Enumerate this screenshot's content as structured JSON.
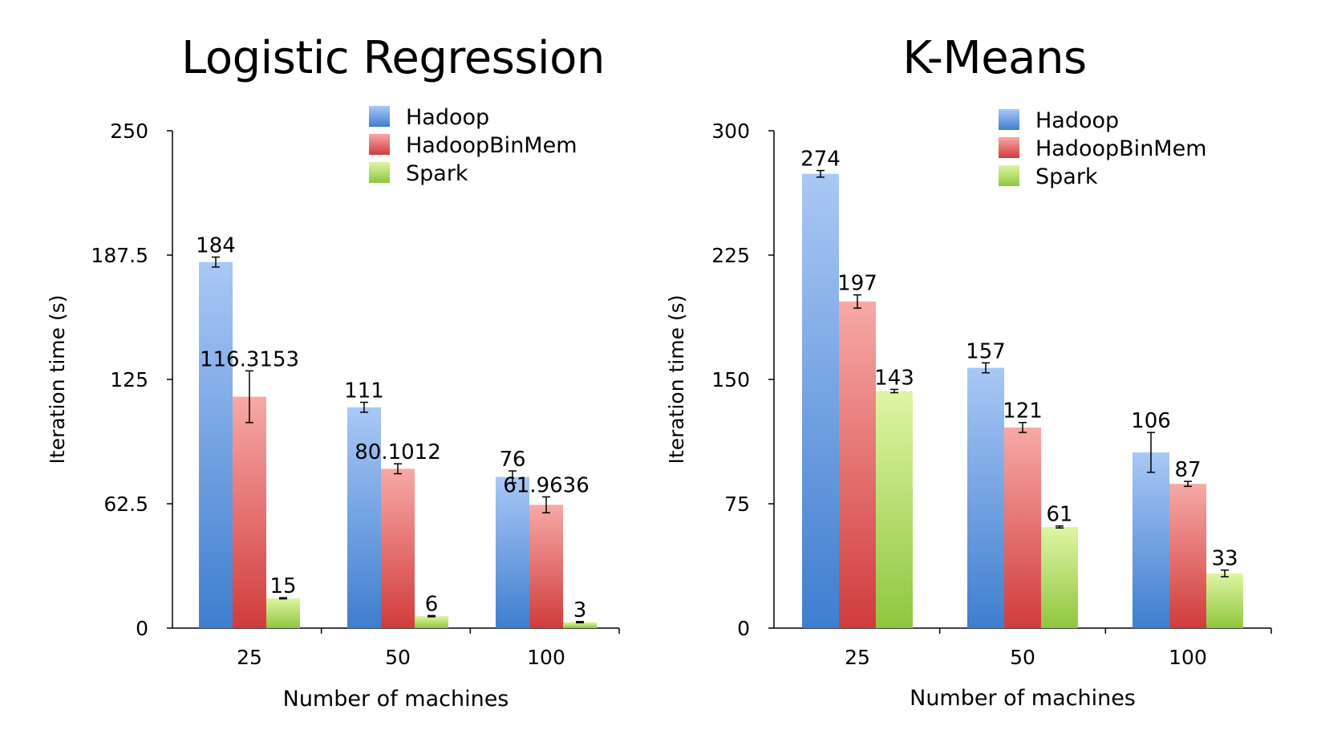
{
  "chart_data": [
    {
      "type": "bar",
      "title": "Logistic Regression",
      "xlabel": "Number of machines",
      "ylabel": "Iteration time (s)",
      "ylim": [
        0,
        250
      ],
      "yticks": [
        "0",
        "62.5",
        "125",
        "187.5",
        "250"
      ],
      "categories": [
        "25",
        "50",
        "100"
      ],
      "legend_position": "top-right",
      "series": [
        {
          "name": "Hadoop",
          "values": [
            184,
            111,
            76
          ],
          "labels": [
            "184",
            "111",
            "76"
          ],
          "errors": [
            2.5,
            2.5,
            3
          ]
        },
        {
          "name": "HadoopBinMem",
          "values": [
            116.3153,
            80.1012,
            61.9636
          ],
          "labels": [
            "116.3153",
            "80.1012",
            "61.9636"
          ],
          "errors": [
            13,
            2.5,
            4
          ]
        },
        {
          "name": "Spark",
          "values": [
            15,
            6,
            3
          ],
          "labels": [
            "15",
            "6",
            "3"
          ],
          "errors": [
            0.3,
            0.3,
            0.3
          ]
        }
      ]
    },
    {
      "type": "bar",
      "title": "K-Means",
      "xlabel": "Number of machines",
      "ylabel": "Iteration time (s)",
      "ylim": [
        0,
        300
      ],
      "yticks": [
        "0",
        "75",
        "150",
        "225",
        "300"
      ],
      "categories": [
        "25",
        "50",
        "100"
      ],
      "legend_position": "top-right",
      "series": [
        {
          "name": "Hadoop",
          "values": [
            274,
            157,
            106
          ],
          "labels": [
            "274",
            "157",
            "106"
          ],
          "errors": [
            2,
            3,
            12
          ]
        },
        {
          "name": "HadoopBinMem",
          "values": [
            197,
            121,
            87
          ],
          "labels": [
            "197",
            "121",
            "87"
          ],
          "errors": [
            4,
            3,
            1.5
          ]
        },
        {
          "name": "Spark",
          "values": [
            143,
            61,
            33
          ],
          "labels": [
            "143",
            "61",
            "33"
          ],
          "errors": [
            1,
            0.6,
            2
          ]
        }
      ]
    }
  ],
  "colors": {
    "hadoop_light": "#a9c8f5",
    "hadoop_dark": "#3f7ecf",
    "binmem_light": "#f7a9a6",
    "binmem_dark": "#d03c3c",
    "spark_light": "#dff5a3",
    "spark_dark": "#8fc63f"
  }
}
